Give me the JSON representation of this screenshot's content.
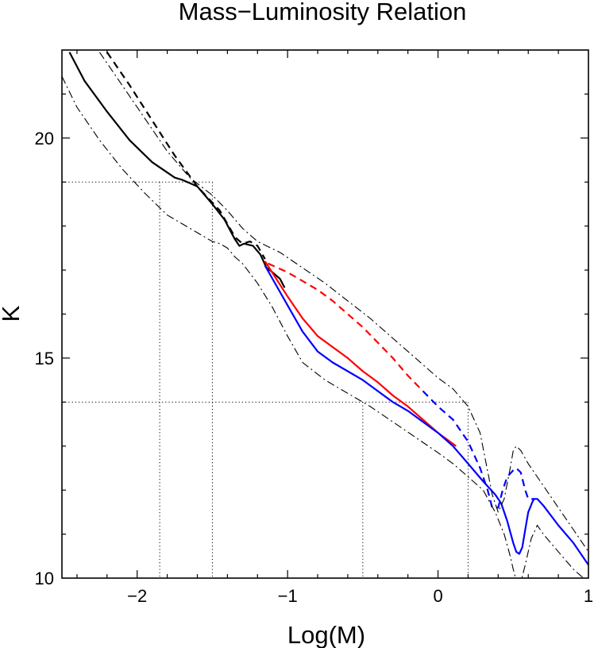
{
  "chart_data": {
    "type": "line",
    "title": "Mass−Luminosity Relation",
    "xlabel": "Log(M)",
    "ylabel": "K",
    "xlim": [
      -2.5,
      1.0
    ],
    "ylim": [
      10,
      22
    ],
    "y_axis_inverted": false,
    "grid": false,
    "legend": "none",
    "x_ticks": [
      {
        "value": -2,
        "label": "−2"
      },
      {
        "value": -1,
        "label": "−1"
      },
      {
        "value": 0,
        "label": "0"
      },
      {
        "value": 1,
        "label": "1"
      }
    ],
    "y_ticks": [
      {
        "value": 10,
        "label": "10"
      },
      {
        "value": 15,
        "label": "15"
      },
      {
        "value": 20,
        "label": "20"
      }
    ],
    "reference_lines": {
      "horizontal": [
        19.0,
        14.0
      ],
      "vertical_to_19": [
        -1.85,
        -1.5
      ],
      "vertical_to_14": [
        -0.5,
        0.2
      ]
    },
    "series": [
      {
        "color": "#000000",
        "dash": "solid",
        "width": 2.2,
        "x": [
          -2.45,
          -2.35,
          -2.2,
          -2.05,
          -1.9,
          -1.75,
          -1.7,
          -1.6,
          -1.55,
          -1.5,
          -1.42,
          -1.35,
          -1.32,
          -1.29,
          -1.23,
          -1.18,
          -1.14,
          -1.1,
          -1.05,
          -1.02
        ],
        "y": [
          21.95,
          21.3,
          20.6,
          19.95,
          19.45,
          19.1,
          19.05,
          18.9,
          18.7,
          18.5,
          18.15,
          17.7,
          17.55,
          17.6,
          17.55,
          17.35,
          17.05,
          16.95,
          16.8,
          16.6
        ]
      },
      {
        "color": "#000000",
        "dash": "dashed",
        "width": 2.2,
        "x": [
          -2.2,
          -2.05,
          -1.9,
          -1.75,
          -1.6,
          -1.45,
          -1.35,
          -1.3,
          -1.25,
          -1.2,
          -1.15
        ],
        "y": [
          21.95,
          21.2,
          20.4,
          19.6,
          18.9,
          18.35,
          17.75,
          17.6,
          17.65,
          17.55,
          17.25
        ]
      },
      {
        "color": "#ff0000",
        "dash": "solid",
        "width": 2.2,
        "x": [
          -1.15,
          -1.0,
          -0.9,
          -0.8,
          -0.7,
          -0.6,
          -0.5,
          -0.4,
          -0.3,
          -0.2,
          -0.1,
          0.0,
          0.12
        ],
        "y": [
          17.2,
          16.4,
          15.9,
          15.5,
          15.25,
          15.0,
          14.7,
          14.45,
          14.15,
          13.9,
          13.6,
          13.3,
          13.0
        ]
      },
      {
        "color": "#ff0000",
        "dash": "dashed",
        "width": 2.2,
        "x": [
          -1.13,
          -1.0,
          -0.9,
          -0.8,
          -0.7,
          -0.6,
          -0.5,
          -0.4,
          -0.3,
          -0.2,
          -0.1
        ],
        "y": [
          17.15,
          16.95,
          16.75,
          16.55,
          16.3,
          16.0,
          15.7,
          15.35,
          15.0,
          14.6,
          14.25
        ]
      },
      {
        "color": "#0000ff",
        "dash": "solid",
        "width": 2.2,
        "x": [
          -1.15,
          -1.0,
          -0.9,
          -0.8,
          -0.7,
          -0.6,
          -0.5,
          -0.4,
          -0.3,
          -0.2,
          -0.1,
          0.0,
          0.1,
          0.2,
          0.3,
          0.38,
          0.42,
          0.46,
          0.5,
          0.52,
          0.54,
          0.56,
          0.58,
          0.6,
          0.63,
          0.64,
          0.66,
          0.7,
          0.8,
          0.9,
          1.0
        ],
        "y": [
          17.1,
          16.2,
          15.6,
          15.15,
          14.9,
          14.7,
          14.5,
          14.25,
          14.0,
          13.8,
          13.55,
          13.3,
          13.0,
          12.6,
          12.2,
          11.9,
          11.7,
          11.3,
          10.8,
          10.6,
          10.55,
          10.7,
          11.1,
          11.5,
          11.75,
          11.8,
          11.8,
          11.65,
          11.2,
          10.8,
          10.3
        ]
      },
      {
        "color": "#0000ff",
        "dash": "dashed",
        "width": 2.2,
        "x": [
          -0.1,
          0.0,
          0.1,
          0.2,
          0.28,
          0.33,
          0.36,
          0.4,
          0.43,
          0.46,
          0.5,
          0.52,
          0.55,
          0.58,
          0.6,
          0.64
        ],
        "y": [
          14.25,
          13.9,
          13.6,
          13.1,
          12.5,
          12.0,
          11.6,
          11.6,
          12.0,
          12.3,
          12.45,
          12.5,
          12.4,
          12.0,
          11.8,
          11.8
        ]
      },
      {
        "color": "#000000",
        "dash": "dashdot",
        "width": 1.1,
        "x": [
          -2.25,
          -2.1,
          -1.95,
          -1.8,
          -1.65,
          -1.5,
          -1.4,
          -1.3,
          -1.2,
          -1.05,
          -0.9,
          -0.75,
          -0.6,
          -0.45,
          -0.3,
          -0.15,
          0.0,
          0.1,
          0.2,
          0.28,
          0.32,
          0.36,
          0.4,
          0.44,
          0.48,
          0.5,
          0.52,
          0.55,
          0.6,
          0.7,
          0.8,
          0.9,
          1.0
        ],
        "y": [
          21.95,
          21.2,
          20.45,
          19.7,
          19.1,
          18.7,
          18.35,
          17.95,
          17.65,
          17.4,
          17.05,
          16.7,
          16.3,
          15.9,
          15.45,
          15.0,
          14.55,
          14.3,
          13.9,
          13.3,
          12.6,
          11.9,
          11.5,
          11.8,
          12.5,
          12.9,
          13.0,
          12.9,
          12.6,
          12.1,
          11.6,
          11.1,
          10.6
        ]
      },
      {
        "color": "#000000",
        "dash": "dashdot",
        "width": 1.1,
        "x": [
          -2.5,
          -2.4,
          -2.25,
          -2.1,
          -1.95,
          -1.8,
          -1.7,
          -1.6,
          -1.5,
          -1.45,
          -1.4,
          -1.35,
          -1.3,
          -1.2,
          -1.1,
          -1.0,
          -0.9,
          -0.75,
          -0.6,
          -0.45,
          -0.3,
          -0.15,
          0.0,
          0.1,
          0.2,
          0.3,
          0.38,
          0.44,
          0.48,
          0.5,
          0.52,
          0.55,
          0.58,
          0.62,
          0.66,
          0.7,
          0.8,
          0.9,
          1.0
        ],
        "y": [
          21.4,
          20.7,
          19.95,
          19.3,
          18.75,
          18.25,
          18.05,
          17.85,
          17.65,
          17.6,
          17.5,
          17.3,
          17.15,
          16.7,
          16.15,
          15.5,
          14.9,
          14.5,
          14.2,
          13.9,
          13.55,
          13.2,
          12.85,
          12.6,
          12.3,
          12.0,
          11.5,
          11.0,
          10.5,
          10.2,
          9.95,
          9.9,
          10.3,
          10.9,
          11.2,
          11.0,
          10.6,
          10.2,
          9.9
        ]
      }
    ]
  }
}
